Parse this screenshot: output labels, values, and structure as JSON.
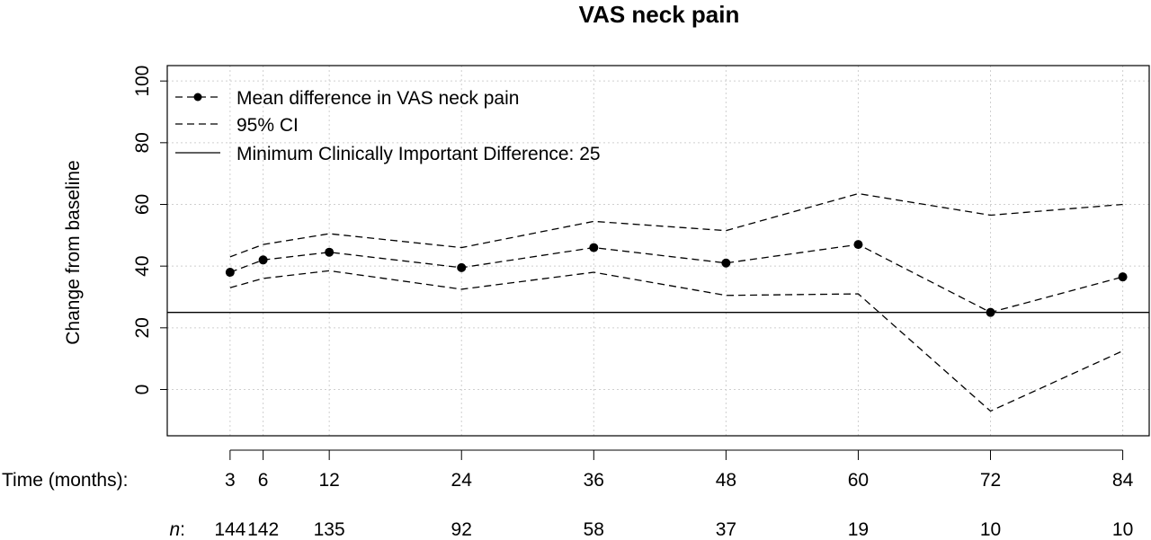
{
  "chart_data": {
    "type": "line",
    "title": "VAS neck pain",
    "ylabel": "Change from baseline",
    "xlabel": "",
    "ylim": [
      -15,
      105
    ],
    "yticks": [
      0,
      20,
      40,
      60,
      80,
      100
    ],
    "x": [
      3,
      6,
      12,
      24,
      36,
      48,
      60,
      72,
      84
    ],
    "grid": true,
    "series": [
      {
        "name": "Mean difference in VAS neck pain",
        "values": [
          38,
          42,
          44.5,
          39.5,
          46,
          41,
          47,
          25,
          36.5
        ]
      },
      {
        "name": "95% CI",
        "upper": [
          43,
          47,
          50.5,
          46,
          54.5,
          51.5,
          63.5,
          56.5,
          60
        ],
        "lower": [
          33,
          36,
          38.5,
          32.5,
          38,
          30.5,
          31,
          -7,
          12.5
        ]
      }
    ],
    "reference_line": {
      "name": "Minimum Clinically Important Difference: 25",
      "value": 25
    },
    "legend_position": "top-left",
    "bottom_rows": {
      "time_label": "Time (months):",
      "n_label": "n",
      "n_values": [
        144,
        142,
        135,
        92,
        58,
        37,
        19,
        10,
        10
      ]
    }
  }
}
